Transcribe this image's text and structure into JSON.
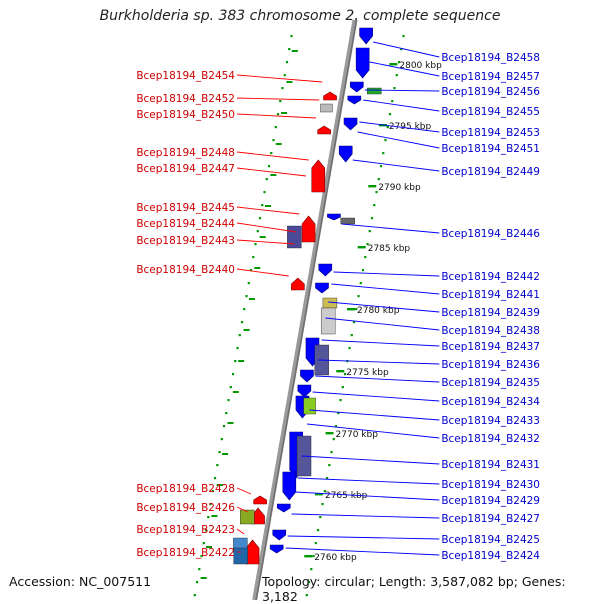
{
  "title": "Burkholderia sp. 383 chromosome 2, complete sequence",
  "footer": {
    "accession": "Accession: NC_007511",
    "topology": "Topology: circular; Length: 3,587,082 bp; Genes: 3,182"
  },
  "colors": {
    "forward_gene": "#ff0000",
    "reverse_gene": "#0000ff",
    "forward_label": "#cc0000",
    "reverse_label": "#0000cc",
    "tick": "#009900",
    "backbone": "#888888"
  },
  "scale_labels": [
    "2800 kbp",
    "2795 kbp",
    "2790 kbp",
    "2785 kbp",
    "2780 kbp",
    "2775 kbp",
    "2770 kbp",
    "2765 kbp",
    "2760 kbp"
  ],
  "left_labels": [
    "Bcep18194_B2454",
    "Bcep18194_B2452",
    "Bcep18194_B2450",
    "Bcep18194_B2448",
    "Bcep18194_B2447",
    "Bcep18194_B2445",
    "Bcep18194_B2444",
    "Bcep18194_B2443",
    "Bcep18194_B2440",
    "Bcep18194_B2428",
    "Bcep18194_B2426",
    "Bcep18194_B2423",
    "Bcep18194_B2422"
  ],
  "right_labels": [
    "Bcep18194_B2458",
    "Bcep18194_B2457",
    "Bcep18194_B2456",
    "Bcep18194_B2455",
    "Bcep18194_B2453",
    "Bcep18194_B2451",
    "Bcep18194_B2449",
    "Bcep18194_B2446",
    "Bcep18194_B2442",
    "Bcep18194_B2441",
    "Bcep18194_B2439",
    "Bcep18194_B2438",
    "Bcep18194_B2437",
    "Bcep18194_B2436",
    "Bcep18194_B2435",
    "Bcep18194_B2434",
    "Bcep18194_B2433",
    "Bcep18194_B2432",
    "Bcep18194_B2431",
    "Bcep18194_B2430",
    "Bcep18194_B2429",
    "Bcep18194_B2427",
    "Bcep18194_B2425",
    "Bcep18194_B2424"
  ]
}
